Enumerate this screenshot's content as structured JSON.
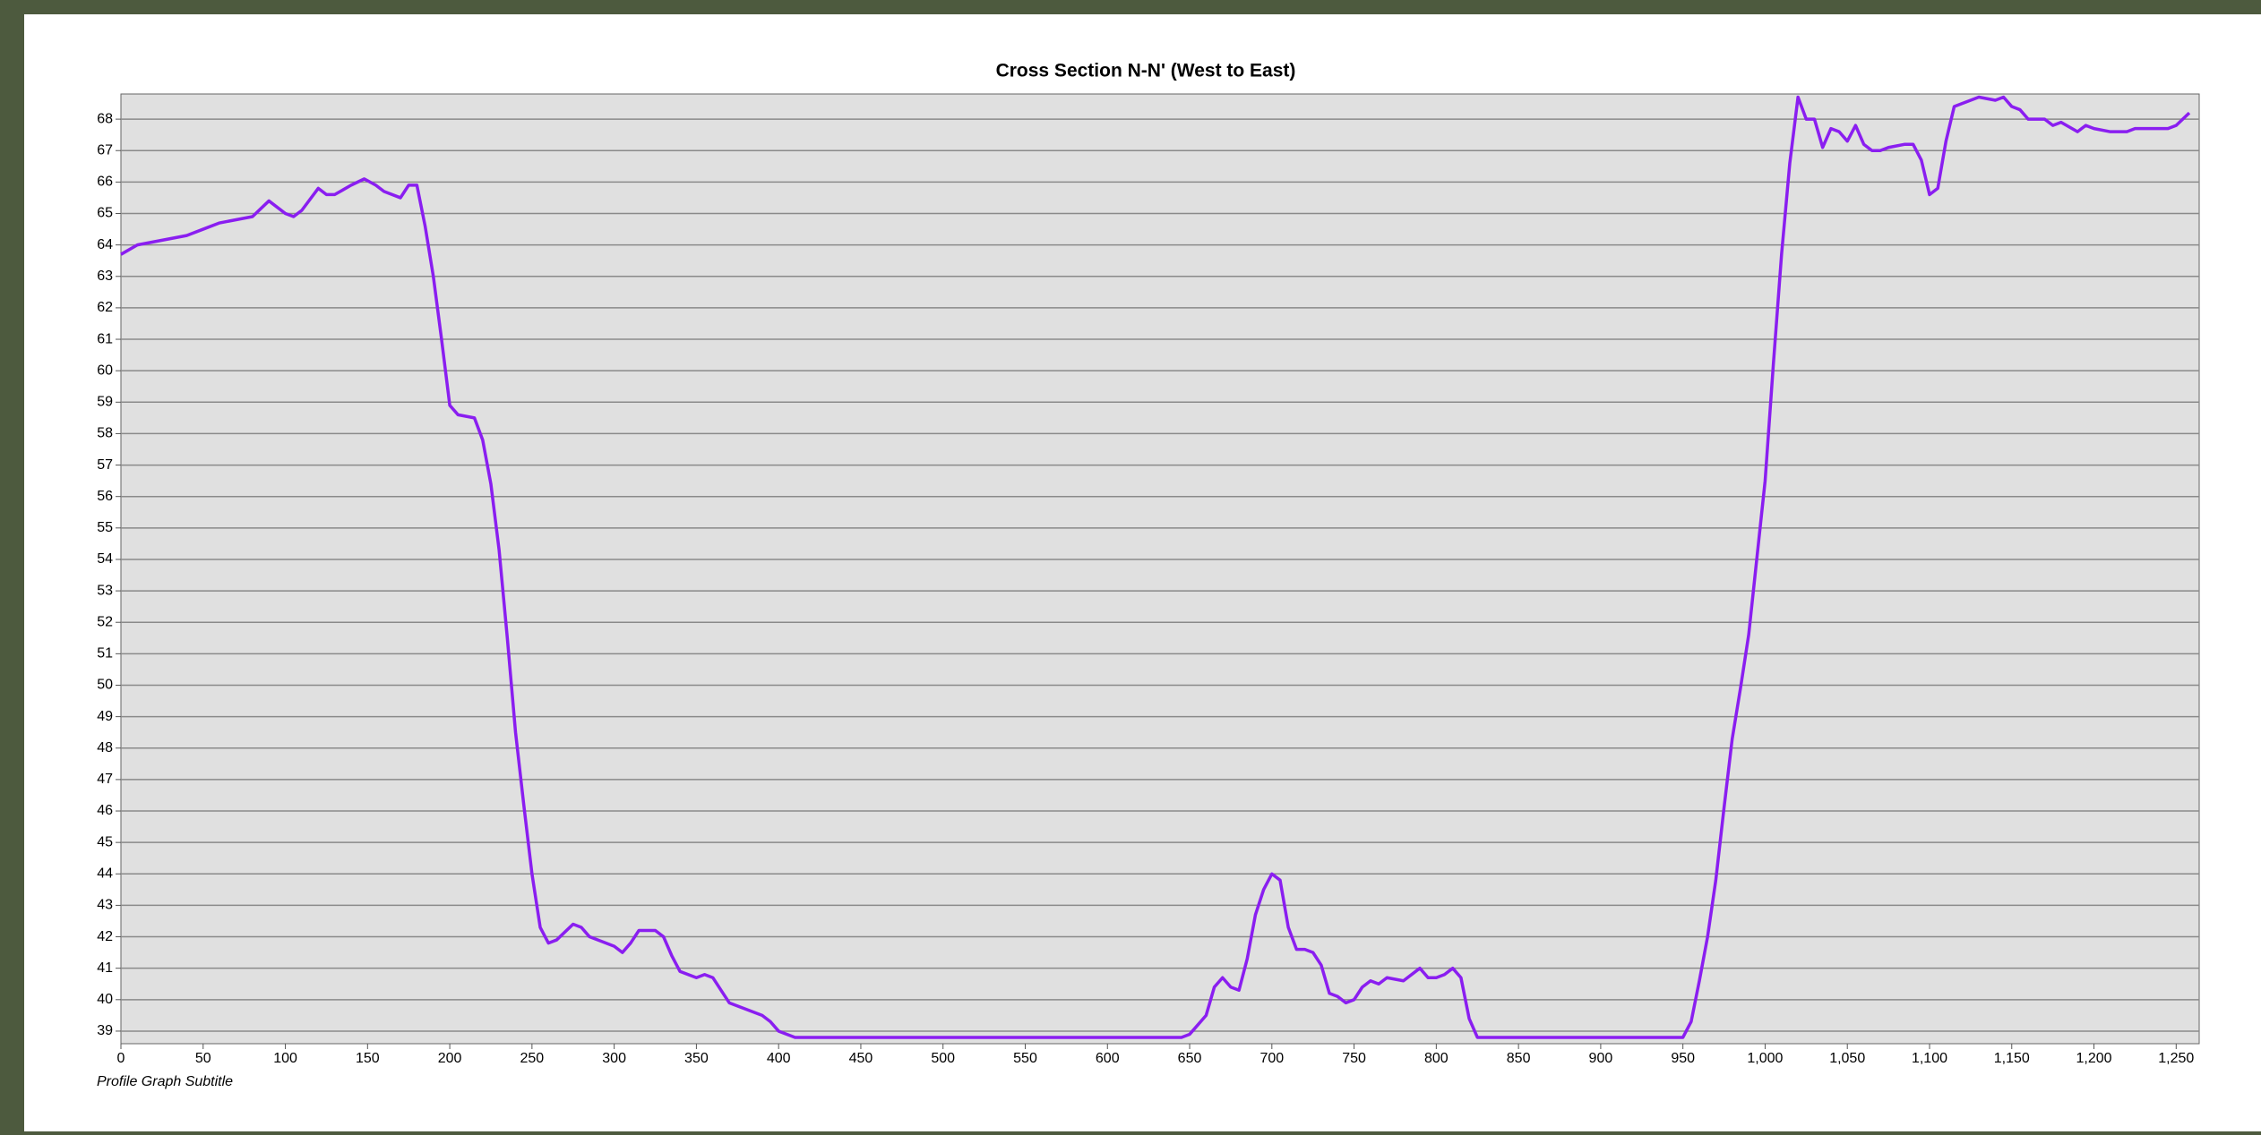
{
  "chart_data": {
    "type": "line",
    "title": "Cross Section N-N' (West to East)",
    "subtitle": "Profile Graph Subtitle",
    "color": "#8a1ef0",
    "grid": true,
    "xlim": [
      0,
      1264
    ],
    "ylim": [
      38.6,
      68.8
    ],
    "xticks": [
      0,
      50,
      100,
      150,
      200,
      250,
      300,
      350,
      400,
      450,
      500,
      550,
      600,
      650,
      700,
      750,
      800,
      850,
      900,
      950,
      {
        "value": 1000,
        "label": "1,000"
      },
      {
        "value": 1050,
        "label": "1,050"
      },
      {
        "value": 1100,
        "label": "1,100"
      },
      {
        "value": 1150,
        "label": "1,150"
      },
      {
        "value": 1200,
        "label": "1,200"
      },
      {
        "value": 1250,
        "label": "1,250"
      }
    ],
    "yticks": [
      39,
      40,
      41,
      42,
      43,
      44,
      45,
      46,
      47,
      48,
      49,
      50,
      51,
      52,
      53,
      54,
      55,
      56,
      57,
      58,
      59,
      60,
      61,
      62,
      63,
      64,
      65,
      66,
      67,
      68
    ],
    "x": [
      0,
      10,
      20,
      30,
      40,
      50,
      60,
      70,
      80,
      90,
      100,
      105,
      110,
      120,
      125,
      130,
      140,
      148,
      155,
      160,
      170,
      175,
      180,
      185,
      190,
      195,
      200,
      205,
      215,
      220,
      225,
      230,
      235,
      240,
      245,
      250,
      255,
      260,
      265,
      275,
      280,
      285,
      300,
      305,
      310,
      315,
      325,
      330,
      335,
      340,
      350,
      355,
      360,
      365,
      370,
      380,
      390,
      395,
      400,
      410,
      450,
      500,
      550,
      600,
      645,
      650,
      655,
      660,
      665,
      670,
      675,
      680,
      685,
      690,
      695,
      700,
      705,
      710,
      715,
      720,
      725,
      730,
      735,
      740,
      745,
      750,
      755,
      760,
      765,
      770,
      780,
      790,
      795,
      800,
      805,
      810,
      815,
      820,
      825,
      900,
      950,
      955,
      960,
      965,
      970,
      975,
      980,
      985,
      990,
      1000,
      1005,
      1010,
      1015,
      1020,
      1025,
      1030,
      1035,
      1040,
      1045,
      1050,
      1055,
      1060,
      1065,
      1070,
      1075,
      1085,
      1090,
      1095,
      1100,
      1105,
      1110,
      1115,
      1120,
      1125,
      1130,
      1140,
      1145,
      1150,
      1155,
      1160,
      1170,
      1175,
      1180,
      1190,
      1195,
      1200,
      1210,
      1220,
      1225,
      1240,
      1245,
      1250,
      1258
    ],
    "values": [
      63.7,
      64.0,
      64.1,
      64.2,
      64.3,
      64.5,
      64.7,
      64.8,
      64.9,
      65.4,
      65.0,
      64.9,
      65.1,
      65.8,
      65.6,
      65.6,
      65.9,
      66.1,
      65.9,
      65.7,
      65.5,
      65.9,
      65.9,
      64.6,
      63.0,
      61.0,
      58.9,
      58.6,
      58.5,
      57.8,
      56.4,
      54.3,
      51.5,
      48.5,
      46.2,
      44.0,
      42.3,
      41.8,
      41.9,
      42.4,
      42.3,
      42.0,
      41.7,
      41.5,
      41.8,
      42.2,
      42.2,
      42.0,
      41.4,
      40.9,
      40.7,
      40.8,
      40.7,
      40.3,
      39.9,
      39.7,
      39.5,
      39.3,
      39.0,
      38.8,
      38.8,
      38.8,
      38.8,
      38.8,
      38.8,
      38.9,
      39.2,
      39.5,
      40.4,
      40.7,
      40.4,
      40.3,
      41.3,
      42.7,
      43.5,
      44.0,
      43.8,
      42.3,
      41.6,
      41.6,
      41.5,
      41.1,
      40.2,
      40.1,
      39.9,
      40.0,
      40.4,
      40.6,
      40.5,
      40.7,
      40.6,
      41.0,
      40.7,
      40.7,
      40.8,
      41.0,
      40.7,
      39.4,
      38.8,
      38.8,
      38.8,
      39.3,
      40.6,
      42.0,
      43.8,
      46.1,
      48.3,
      49.9,
      51.6,
      56.5,
      60.2,
      63.7,
      66.6,
      68.7,
      68.0,
      68.0,
      67.1,
      67.7,
      67.6,
      67.3,
      67.8,
      67.2,
      67.0,
      67.0,
      67.1,
      67.2,
      67.2,
      66.7,
      65.6,
      65.8,
      67.3,
      68.4,
      68.5,
      68.6,
      68.7,
      68.6,
      68.7,
      68.4,
      68.3,
      68.0,
      68.0,
      67.8,
      67.9,
      67.6,
      67.8,
      67.7,
      67.6,
      67.6,
      67.7,
      67.7,
      67.7,
      67.8,
      68.2
    ]
  }
}
